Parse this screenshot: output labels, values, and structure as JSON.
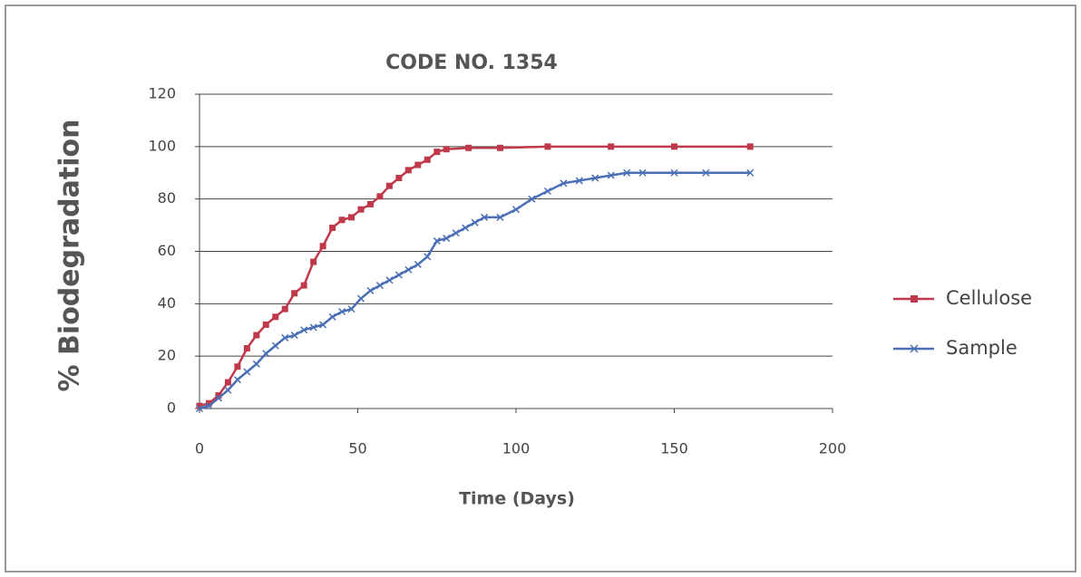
{
  "chart_data": {
    "type": "line",
    "title": "CODE NO. 1354",
    "x_label": "Time (Days)",
    "y_label": "% Biodegradation",
    "xlim": [
      0,
      200
    ],
    "xticks": [
      0,
      50,
      100,
      150,
      200
    ],
    "ylim": [
      0,
      120
    ],
    "yticks": [
      0,
      20,
      40,
      60,
      80,
      100,
      120
    ],
    "grid": true,
    "legend": "right",
    "series": [
      {
        "name": "Cellulose",
        "color": "#c0394a",
        "marker": "square",
        "x": [
          0,
          3,
          6,
          9,
          12,
          15,
          18,
          21,
          24,
          27,
          30,
          33,
          36,
          39,
          42,
          45,
          48,
          51,
          54,
          57,
          60,
          63,
          66,
          69,
          72,
          75,
          78,
          85,
          95,
          110,
          130,
          150,
          174
        ],
        "values": [
          1,
          2,
          5,
          10,
          16,
          23,
          28,
          32,
          35,
          38,
          44,
          47,
          56,
          62,
          69,
          72,
          73,
          76,
          78,
          81,
          85,
          88,
          91,
          93,
          95,
          98,
          99,
          99.5,
          99.5,
          100,
          100,
          100,
          100
        ]
      },
      {
        "name": "Sample",
        "color": "#4a6fb5",
        "marker": "x",
        "x": [
          0,
          3,
          6,
          9,
          12,
          15,
          18,
          21,
          24,
          27,
          30,
          33,
          36,
          39,
          42,
          45,
          48,
          51,
          54,
          57,
          60,
          63,
          66,
          69,
          72,
          75,
          78,
          81,
          84,
          87,
          90,
          95,
          100,
          105,
          110,
          115,
          120,
          125,
          130,
          135,
          140,
          150,
          160,
          174
        ],
        "values": [
          0,
          1,
          4,
          7,
          11,
          14,
          17,
          21,
          24,
          27,
          28,
          30,
          31,
          32,
          35,
          37,
          38,
          42,
          45,
          47,
          49,
          51,
          53,
          55,
          58,
          64,
          65,
          67,
          69,
          71,
          73,
          73,
          76,
          80,
          83,
          86,
          87,
          88,
          89,
          90,
          90,
          90,
          90,
          90
        ]
      }
    ]
  }
}
